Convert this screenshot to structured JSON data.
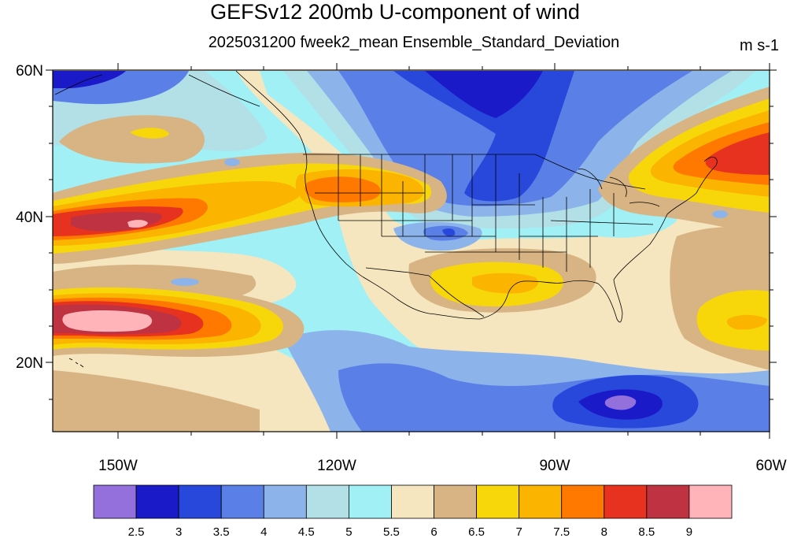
{
  "title": "GEFSv12 200mb U-component of wind",
  "subtitle": "2025031200 fweek2_mean Ensemble_Standard_Deviation",
  "units": "m s-1",
  "lat_labels": [
    "60N",
    "40N",
    "20N"
  ],
  "lon_labels": [
    "150W",
    "120W",
    "90W",
    "60W"
  ],
  "colorbar": {
    "labels": [
      "2.5",
      "3",
      "3.5",
      "4",
      "4.5",
      "5",
      "5.5",
      "6",
      "6.5",
      "7",
      "7.5",
      "8",
      "8.5",
      "9"
    ],
    "colors": [
      "#9370db",
      "#1a1ac8",
      "#2848dc",
      "#5a80e8",
      "#8cb4eb",
      "#b2e0e6",
      "#a0f0f6",
      "#f5e6c0",
      "#d8b484",
      "#f7d70a",
      "#fbb400",
      "#ff7800",
      "#e6321e",
      "#be3241",
      "#ffb4b9"
    ]
  },
  "map": {
    "lon_range": [
      -160,
      -60
    ],
    "lat_range": [
      10,
      60
    ],
    "projection": "cylindrical-equidistant",
    "features": [
      "coastlines",
      "US state boundaries",
      "country borders"
    ]
  }
}
